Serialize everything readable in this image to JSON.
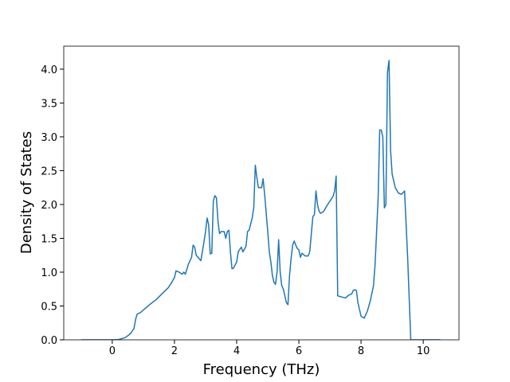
{
  "chart_data": {
    "type": "line",
    "xlabel": "Frequency (THz)",
    "ylabel": "Density of States",
    "color": "#1f77b4",
    "x": [
      -1,
      0,
      0.2,
      0.4,
      0.5,
      0.6,
      0.7,
      0.75,
      0.8,
      0.9,
      1.0,
      1.2,
      1.4,
      1.6,
      1.8,
      1.9,
      2.0,
      2.05,
      2.15,
      2.25,
      2.3,
      2.35,
      2.45,
      2.55,
      2.6,
      2.65,
      2.7,
      2.85,
      2.95,
      3.0,
      3.05,
      3.1,
      3.15,
      3.2,
      3.25,
      3.3,
      3.35,
      3.4,
      3.45,
      3.5,
      3.6,
      3.65,
      3.7,
      3.75,
      3.8,
      3.85,
      3.9,
      4.0,
      4.05,
      4.15,
      4.2,
      4.3,
      4.35,
      4.4,
      4.5,
      4.55,
      4.6,
      4.65,
      4.7,
      4.8,
      4.85,
      4.9,
      5.0,
      5.05,
      5.1,
      5.15,
      5.2,
      5.25,
      5.3,
      5.35,
      5.4,
      5.45,
      5.5,
      5.6,
      5.65,
      5.7,
      5.75,
      5.8,
      5.85,
      5.9,
      5.95,
      6.0,
      6.05,
      6.1,
      6.2,
      6.3,
      6.35,
      6.45,
      6.5,
      6.55,
      6.6,
      6.65,
      6.7,
      6.8,
      6.9,
      7.0,
      7.1,
      7.15,
      7.2,
      7.25,
      7.4,
      7.5,
      7.6,
      7.7,
      7.75,
      7.8,
      7.85,
      7.9,
      8.0,
      8.1,
      8.2,
      8.3,
      8.4,
      8.45,
      8.5,
      8.55,
      8.6,
      8.65,
      8.7,
      8.75,
      8.8,
      8.85,
      8.9,
      8.95,
      9.0,
      9.1,
      9.2,
      9.3,
      9.4,
      9.45,
      9.5,
      9.55,
      9.6,
      10.55
    ],
    "values": [
      0,
      0,
      0.005,
      0.03,
      0.06,
      0.1,
      0.17,
      0.3,
      0.38,
      0.4,
      0.44,
      0.52,
      0.59,
      0.68,
      0.77,
      0.84,
      0.92,
      1.02,
      1.0,
      0.97,
      1.0,
      0.97,
      1.12,
      1.22,
      1.4,
      1.37,
      1.25,
      1.17,
      1.45,
      1.6,
      1.8,
      1.7,
      1.27,
      1.28,
      2.05,
      2.13,
      2.1,
      1.75,
      1.57,
      1.6,
      1.6,
      1.5,
      1.6,
      1.62,
      1.3,
      1.05,
      1.06,
      1.15,
      1.3,
      1.37,
      1.3,
      1.38,
      1.6,
      1.62,
      1.8,
      1.95,
      2.58,
      2.4,
      2.25,
      2.25,
      2.38,
      2.15,
      1.6,
      1.3,
      1.15,
      0.95,
      0.85,
      0.82,
      1.0,
      1.48,
      1.0,
      0.8,
      0.75,
      0.55,
      0.52,
      0.95,
      1.2,
      1.4,
      1.46,
      1.4,
      1.35,
      1.33,
      1.22,
      1.28,
      1.24,
      1.24,
      1.3,
      1.82,
      1.85,
      2.2,
      2.0,
      1.9,
      1.87,
      1.9,
      1.98,
      2.05,
      2.12,
      2.2,
      2.42,
      0.65,
      0.63,
      0.62,
      0.66,
      0.68,
      0.73,
      0.74,
      0.73,
      0.55,
      0.35,
      0.32,
      0.42,
      0.58,
      0.8,
      1.1,
      1.6,
      2.1,
      3.1,
      3.1,
      3.0,
      1.95,
      2.0,
      3.95,
      4.13,
      2.8,
      2.45,
      2.25,
      2.17,
      2.15,
      2.2,
      1.7,
      1.2,
      0.6,
      0.0,
      0
    ],
    "xlim": [
      -1.56,
      11.15
    ],
    "ylim": [
      0,
      4.34
    ],
    "xticks": [
      0,
      2,
      4,
      6,
      8,
      10
    ],
    "yticks": [
      {
        "value": 0,
        "label": "0.0"
      },
      0.5,
      {
        "value": 1,
        "label": "1.0"
      },
      1.5,
      {
        "value": 2,
        "label": "2.0"
      },
      2.5,
      {
        "value": 3,
        "label": "3.0"
      },
      3.5,
      {
        "value": 4,
        "label": "4.0"
      }
    ]
  }
}
